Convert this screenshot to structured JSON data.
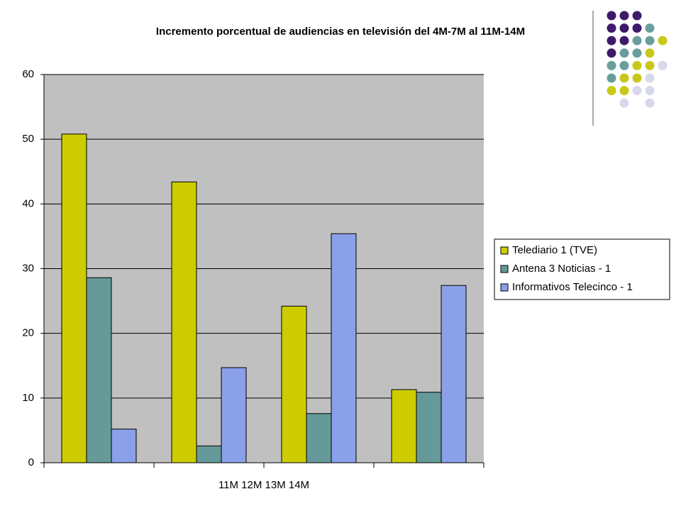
{
  "chart_data": {
    "type": "bar",
    "title": "Incremento porcentual de audiencias en televisión del 4M-7M al 11M-14M",
    "x_label": "11M   12M  13M   14M",
    "categories": [
      null,
      null,
      null,
      null
    ],
    "series": [
      {
        "name": "Telediario 1 (TVE)",
        "color": "#cccc00",
        "values": [
          50.8,
          43.4,
          24.2,
          11.3
        ]
      },
      {
        "name": "Antena 3 Noticias - 1",
        "color": "#669999",
        "values": [
          28.6,
          2.6,
          7.6,
          10.9
        ]
      },
      {
        "name": "Informativos Telecinco - 1",
        "color": "#8aa0e8",
        "values": [
          5.2,
          14.7,
          35.4,
          27.4
        ]
      }
    ],
    "ylim": [
      0,
      60
    ],
    "yticks": [
      0,
      10,
      20,
      30,
      40,
      50,
      60
    ],
    "grid": true,
    "legend": "right"
  }
}
